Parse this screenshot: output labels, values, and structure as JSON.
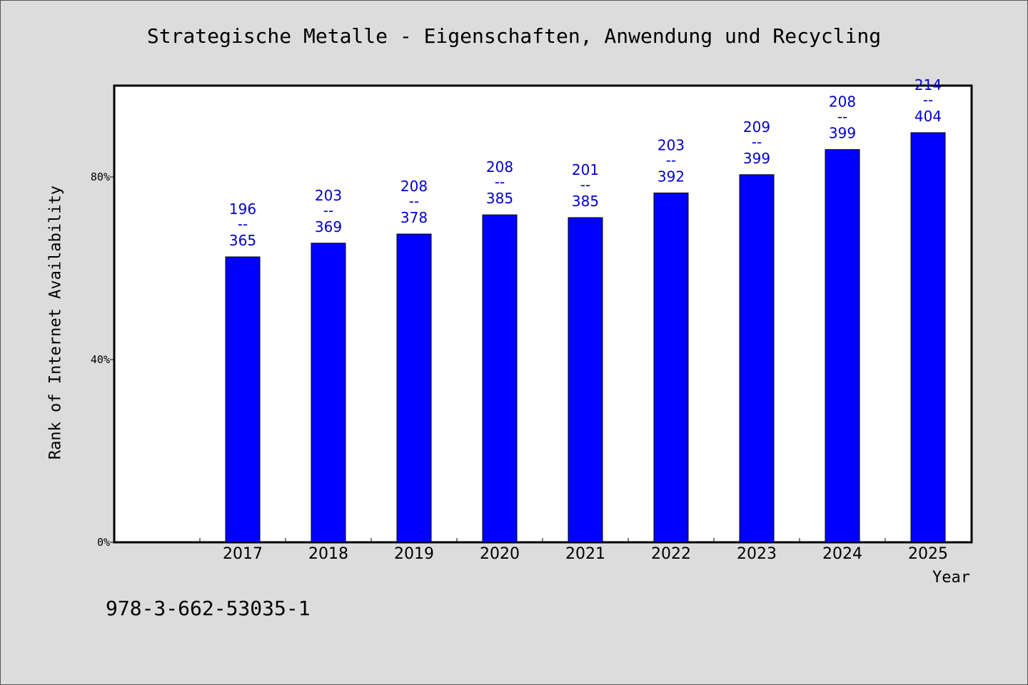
{
  "title": "Strategische Metalle - Eigenschaften, Anwendung und Recycling",
  "isbn": "978-3-662-53035-1",
  "colors": {
    "bar": "#0000ff",
    "label": "#0000cc",
    "plot_bg": "#ffffff",
    "page_bg": "#dcdcdc"
  },
  "chart_data": {
    "type": "bar",
    "title": "Strategische Metalle - Eigenschaften, Anwendung und Recycling",
    "xlabel": "Year",
    "ylabel": "Rank of Internet Availability",
    "ylim": [
      0,
      1.0
    ],
    "yticks": [
      0,
      0.4,
      0.8
    ],
    "ytick_labels": [
      "0%",
      "40%",
      "80%"
    ],
    "grid": false,
    "categories": [
      "2017",
      "2018",
      "2019",
      "2020",
      "2021",
      "2022",
      "2023",
      "2024",
      "2025"
    ],
    "values": [
      0.625,
      0.655,
      0.675,
      0.717,
      0.711,
      0.765,
      0.805,
      0.86,
      0.897
    ],
    "labels": [
      [
        "196",
        "--",
        "365"
      ],
      [
        "203",
        "--",
        "369"
      ],
      [
        "208",
        "--",
        "378"
      ],
      [
        "208",
        "--",
        "385"
      ],
      [
        "201",
        "--",
        "385"
      ],
      [
        "203",
        "--",
        "392"
      ],
      [
        "209",
        "--",
        "399"
      ],
      [
        "208",
        "--",
        "399"
      ],
      [
        "214",
        "--",
        "404"
      ]
    ]
  }
}
